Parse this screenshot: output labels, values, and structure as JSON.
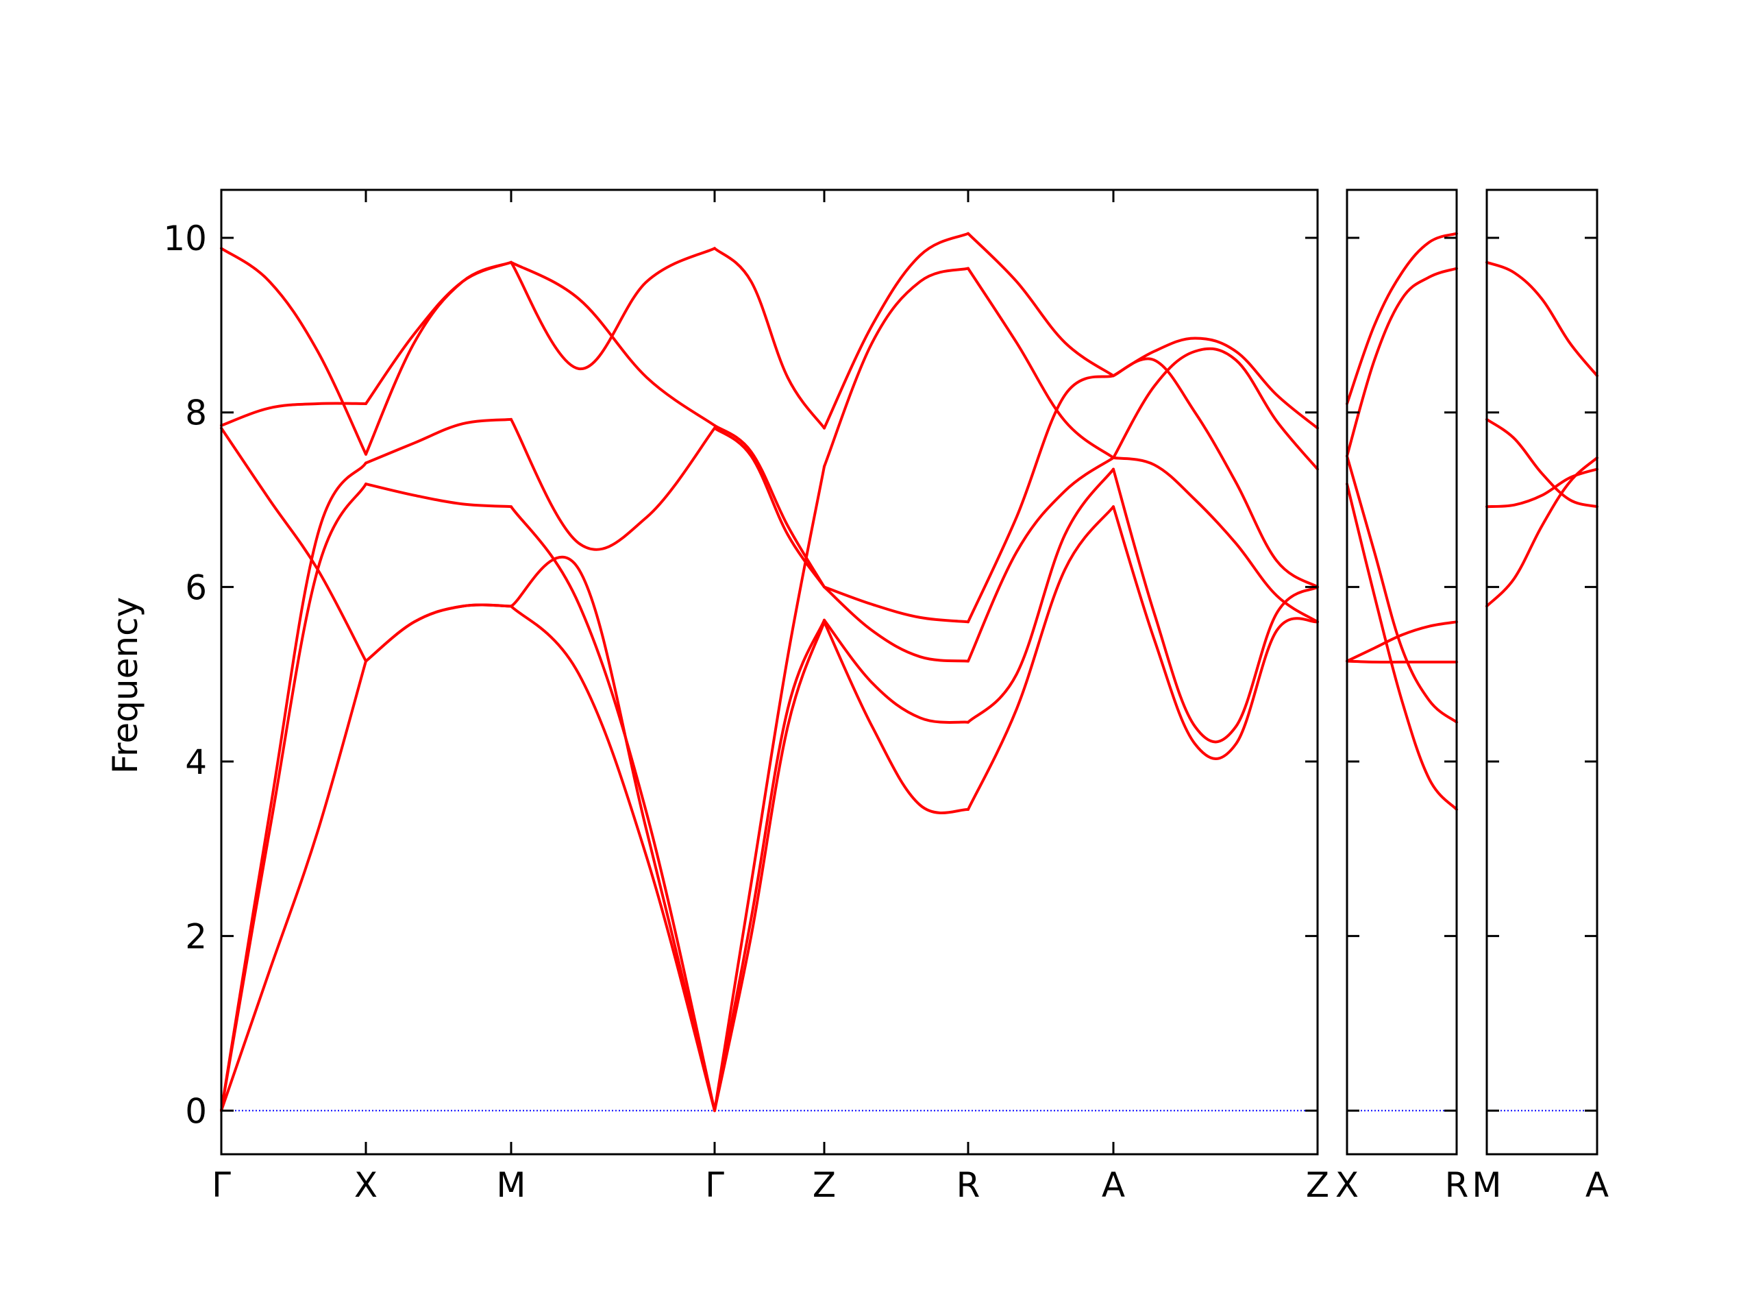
{
  "chart_data": {
    "type": "line",
    "title": "",
    "xlabel": "",
    "ylabel": "Frequency",
    "ylim": [
      -0.5,
      10.55
    ],
    "yticks": [
      0,
      2,
      4,
      6,
      8,
      10
    ],
    "grid": false,
    "legend": "none",
    "colors": {
      "band": "#ff0000",
      "zero_line": "#0000ff",
      "axes": "#000000"
    },
    "panels": [
      {
        "path_labels": [
          "Γ",
          "X",
          "M",
          "Γ",
          "Z",
          "R",
          "A",
          "Z"
        ],
        "segments": [
          {
            "from": "Γ",
            "to": "X",
            "bands": [
              [
                0.0,
                1.6,
                3.2,
                5.15
              ],
              [
                0.0,
                3.2,
                6.2,
                7.18
              ],
              [
                0.0,
                3.4,
                6.6,
                7.42
              ],
              [
                7.82,
                7.0,
                6.2,
                5.15
              ],
              [
                7.85,
                8.05,
                8.1,
                8.1
              ],
              [
                9.88,
                9.5,
                8.7,
                7.52
              ]
            ]
          },
          {
            "from": "X",
            "to": "M",
            "bands": [
              [
                5.15,
                5.6,
                5.78,
                5.78
              ],
              [
                5.15,
                5.6,
                5.78,
                5.78
              ],
              [
                7.18,
                7.05,
                6.95,
                6.92
              ],
              [
                7.42,
                7.65,
                7.87,
                7.92
              ],
              [
                7.52,
                8.8,
                9.5,
                9.72
              ],
              [
                8.1,
                8.9,
                9.5,
                9.72
              ]
            ]
          },
          {
            "from": "M",
            "to": "Γ",
            "bands": [
              [
                5.78,
                5.0,
                2.9,
                0.0
              ],
              [
                5.78,
                6.2,
                3.2,
                0.0
              ],
              [
                6.92,
                5.8,
                3.4,
                0.0
              ],
              [
                7.92,
                6.5,
                6.8,
                7.82
              ],
              [
                9.72,
                9.3,
                8.4,
                7.85
              ],
              [
                9.72,
                8.5,
                9.5,
                9.88
              ]
            ]
          },
          {
            "from": "Γ",
            "to": "Z",
            "bands": [
              [
                0.0,
                2.0,
                4.4,
                5.6
              ],
              [
                0.0,
                2.2,
                4.6,
                5.62
              ],
              [
                0.0,
                2.6,
                5.2,
                7.38
              ],
              [
                7.82,
                7.5,
                6.6,
                6.0
              ],
              [
                7.85,
                7.55,
                6.7,
                6.0
              ],
              [
                9.88,
                9.5,
                8.4,
                7.82
              ]
            ]
          },
          {
            "from": "Z",
            "to": "R",
            "bands": [
              [
                5.6,
                4.4,
                3.5,
                3.45
              ],
              [
                5.62,
                4.9,
                4.5,
                4.45
              ],
              [
                6.0,
                5.5,
                5.2,
                5.15
              ],
              [
                6.0,
                5.8,
                5.65,
                5.6
              ],
              [
                7.38,
                8.8,
                9.5,
                9.65
              ],
              [
                7.82,
                9.0,
                9.8,
                10.05
              ]
            ]
          },
          {
            "from": "R",
            "to": "A",
            "bands": [
              [
                3.45,
                4.6,
                6.2,
                6.92
              ],
              [
                4.45,
                5.0,
                6.6,
                7.35
              ],
              [
                5.15,
                6.4,
                7.1,
                7.48
              ],
              [
                5.6,
                6.8,
                8.2,
                8.42
              ],
              [
                9.65,
                8.8,
                7.9,
                7.48
              ],
              [
                10.05,
                9.5,
                8.8,
                8.42
              ]
            ]
          },
          {
            "from": "A",
            "to": "Z",
            "bands": [
              [
                6.92,
                5.4,
                4.2,
                4.2,
                5.5,
                5.6
              ],
              [
                7.35,
                5.7,
                4.4,
                4.4,
                5.7,
                6.0
              ],
              [
                7.48,
                7.4,
                7.0,
                6.5,
                5.9,
                5.6
              ],
              [
                8.42,
                8.6,
                8.0,
                7.2,
                6.3,
                6.0
              ],
              [
                7.48,
                8.3,
                8.7,
                8.6,
                7.9,
                7.35
              ],
              [
                8.42,
                8.7,
                8.85,
                8.7,
                8.2,
                7.82
              ]
            ]
          }
        ]
      },
      {
        "path_labels": [
          "X",
          "R"
        ],
        "segments": [
          {
            "from": "X",
            "to": "R",
            "bands": [
              [
                5.15,
                5.14,
                5.14,
                5.14,
                5.14
              ],
              [
                5.15,
                5.3,
                5.45,
                5.55,
                5.6
              ],
              [
                7.18,
                5.9,
                4.7,
                3.8,
                3.45
              ],
              [
                7.5,
                6.4,
                5.3,
                4.7,
                4.45
              ],
              [
                7.5,
                8.6,
                9.3,
                9.55,
                9.65
              ],
              [
                8.1,
                9.0,
                9.6,
                9.95,
                10.05
              ]
            ]
          }
        ]
      },
      {
        "path_labels": [
          "M",
          "A"
        ],
        "segments": [
          {
            "from": "M",
            "to": "A",
            "bands": [
              [
                5.78,
                6.1,
                6.7,
                7.2,
                7.48
              ],
              [
                6.92,
                6.94,
                7.05,
                7.25,
                7.35
              ],
              [
                7.92,
                7.7,
                7.3,
                7.0,
                6.92
              ],
              [
                9.72,
                9.6,
                9.3,
                8.8,
                8.42
              ]
            ]
          }
        ]
      }
    ]
  }
}
